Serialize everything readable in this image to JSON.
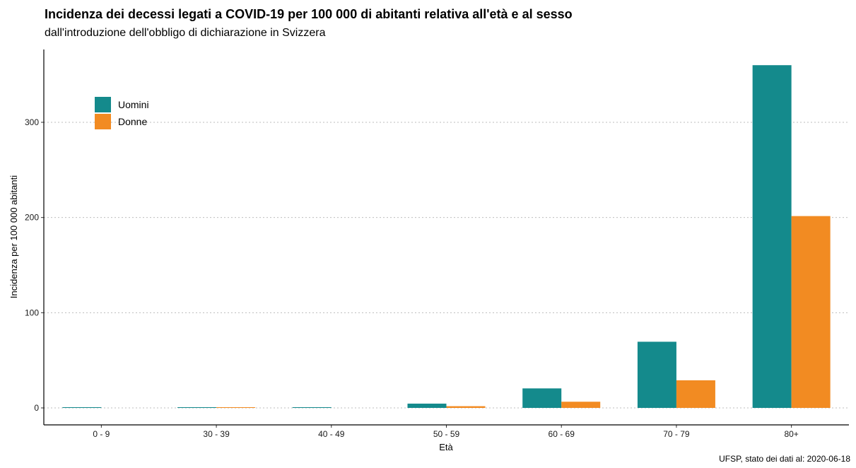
{
  "chart_data": {
    "type": "bar",
    "title": "Incidenza dei decessi legati a COVID-19 per 100 000 di abitanti relativa all'età e al sesso",
    "subtitle": "dall'introduzione dell'obbligo di dichiarazione in Svizzera",
    "xlabel": "Età",
    "ylabel": "Incidenza per 100 000 abitanti",
    "caption": "UFSP, stato dei dati al: 2020-06-18",
    "categories": [
      "0 - 9",
      "30 - 39",
      "40 - 49",
      "50 - 59",
      "60 - 69",
      "70 - 79",
      "80+"
    ],
    "series": [
      {
        "name": "Uomini",
        "color": "#148a8c",
        "values": [
          0.5,
          0.6,
          0.6,
          4.5,
          20.5,
          69.5,
          360
        ]
      },
      {
        "name": "Donne",
        "color": "#f28b22",
        "values": [
          0,
          0.4,
          0,
          1.8,
          6.5,
          29,
          201.5
        ]
      }
    ],
    "ylim": [
      0,
      360
    ],
    "yticks": [
      0,
      100,
      200,
      300
    ],
    "grid": "horizontal dotted",
    "legend_position": "top-left"
  }
}
